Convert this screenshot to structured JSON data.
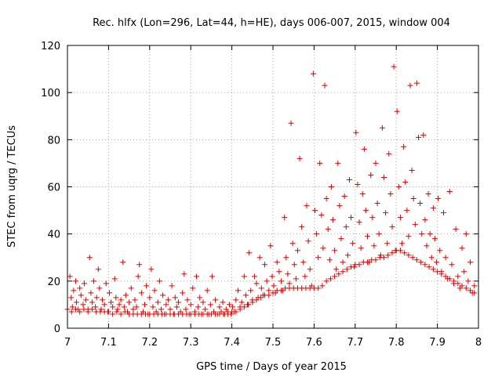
{
  "chart_data": {
    "type": "scatter",
    "title": "Rec. hlfx (Lon=296, Lat=44, h=HE), days 006-007, 2015, window 004",
    "xlabel": "GPS time / Days of year 2015",
    "ylabel": "STEC from uqrg / TECUs",
    "xlim": [
      7,
      8
    ],
    "ylim": [
      0,
      120
    ],
    "x_ticks": [
      7,
      7.1,
      7.2,
      7.3,
      7.4,
      7.5,
      7.6,
      7.7,
      7.8,
      7.9,
      8
    ],
    "x_tick_labels": [
      "7",
      "7.1",
      "7.2",
      "7.3",
      "7.4",
      "7.5",
      "7.6",
      "7.7",
      "7.8",
      "7.9",
      "8"
    ],
    "y_ticks": [
      0,
      20,
      40,
      60,
      80,
      100,
      120
    ],
    "y_tick_labels": [
      "0",
      "20",
      "40",
      "60",
      "80",
      "100",
      "120"
    ],
    "grid": true,
    "marker": "plus",
    "series_color": "#dd0000",
    "points": [
      [
        7.006,
        22
      ],
      [
        7.009,
        13
      ],
      [
        7.012,
        9
      ],
      [
        7.015,
        16
      ],
      [
        7.02,
        20
      ],
      [
        7.022,
        11
      ],
      [
        7.026,
        8
      ],
      [
        7.03,
        17
      ],
      [
        7.033,
        14
      ],
      [
        7.038,
        10
      ],
      [
        7.041,
        19
      ],
      [
        7.045,
        12
      ],
      [
        7.05,
        8
      ],
      [
        7.054,
        30
      ],
      [
        7.057,
        15
      ],
      [
        7.06,
        11
      ],
      [
        7.064,
        20
      ],
      [
        7.068,
        9
      ],
      [
        7.071,
        13
      ],
      [
        7.075,
        25
      ],
      [
        7.078,
        17
      ],
      [
        7.082,
        8
      ],
      [
        7.085,
        12
      ],
      [
        7.09,
        10
      ],
      [
        7.094,
        19
      ],
      [
        7.098,
        7
      ],
      [
        7.102,
        15
      ],
      [
        7.106,
        11
      ],
      [
        7.11,
        9
      ],
      [
        7.115,
        21
      ],
      [
        7.118,
        13
      ],
      [
        7.122,
        8
      ],
      [
        7.126,
        10
      ],
      [
        7.13,
        12
      ],
      [
        7.135,
        28
      ],
      [
        7.138,
        9
      ],
      [
        7.142,
        14
      ],
      [
        7.146,
        7
      ],
      [
        7.15,
        11
      ],
      [
        7.155,
        17
      ],
      [
        7.16,
        8
      ],
      [
        7.164,
        12
      ],
      [
        7.168,
        9
      ],
      [
        7.172,
        22
      ],
      [
        7.175,
        27
      ],
      [
        7.18,
        15
      ],
      [
        7.184,
        7
      ],
      [
        7.188,
        10
      ],
      [
        7.192,
        18
      ],
      [
        7.196,
        6
      ],
      [
        7.2,
        13
      ],
      [
        7.204,
        25
      ],
      [
        7.208,
        9
      ],
      [
        7.212,
        16
      ],
      [
        7.216,
        7
      ],
      [
        7.22,
        11
      ],
      [
        7.224,
        20
      ],
      [
        7.228,
        8
      ],
      [
        7.232,
        14
      ],
      [
        7.236,
        6
      ],
      [
        7.24,
        10
      ],
      [
        7.245,
        12
      ],
      [
        7.25,
        8
      ],
      [
        7.254,
        18
      ],
      [
        7.258,
        6
      ],
      [
        7.262,
        13
      ],
      [
        7.266,
        9
      ],
      [
        7.27,
        11
      ],
      [
        7.275,
        7
      ],
      [
        7.28,
        15
      ],
      [
        7.284,
        23
      ],
      [
        7.288,
        8
      ],
      [
        7.292,
        12
      ],
      [
        7.296,
        6
      ],
      [
        7.3,
        10
      ],
      [
        7.305,
        17
      ],
      [
        7.31,
        7
      ],
      [
        7.314,
        22
      ],
      [
        7.318,
        9
      ],
      [
        7.322,
        13
      ],
      [
        7.326,
        6
      ],
      [
        7.33,
        11
      ],
      [
        7.335,
        8
      ],
      [
        7.34,
        16
      ],
      [
        7.344,
        6
      ],
      [
        7.348,
        10
      ],
      [
        7.352,
        22
      ],
      [
        7.356,
        7
      ],
      [
        7.36,
        12
      ],
      [
        7.365,
        6
      ],
      [
        7.37,
        9
      ],
      [
        7.374,
        7
      ],
      [
        7.378,
        11
      ],
      [
        7.382,
        6
      ],
      [
        7.386,
        8
      ],
      [
        7.39,
        7
      ],
      [
        7.394,
        10
      ],
      [
        7.398,
        6
      ],
      [
        7.402,
        9
      ],
      [
        7.406,
        7
      ],
      [
        7.41,
        12
      ],
      [
        7.415,
        16
      ],
      [
        7.42,
        9
      ],
      [
        7.424,
        11
      ],
      [
        7.43,
        22
      ],
      [
        7.434,
        14
      ],
      [
        7.438,
        10
      ],
      [
        7.442,
        32
      ],
      [
        7.446,
        16
      ],
      [
        7.45,
        12
      ],
      [
        7.455,
        22
      ],
      [
        7.46,
        19
      ],
      [
        7.464,
        13
      ],
      [
        7.468,
        30
      ],
      [
        7.472,
        17
      ],
      [
        7.476,
        14
      ],
      [
        7.48,
        27
      ],
      [
        7.485,
        20
      ],
      [
        7.49,
        16
      ],
      [
        7.494,
        35
      ],
      [
        7.498,
        22
      ],
      [
        7.502,
        18
      ],
      [
        7.506,
        15
      ],
      [
        7.51,
        28
      ],
      [
        7.515,
        24
      ],
      [
        7.52,
        20
      ],
      [
        7.524,
        16
      ],
      [
        7.528,
        47
      ],
      [
        7.532,
        30
      ],
      [
        7.536,
        23
      ],
      [
        7.54,
        19
      ],
      [
        7.544,
        87
      ],
      [
        7.548,
        36
      ],
      [
        7.552,
        27
      ],
      [
        7.556,
        21
      ],
      [
        7.56,
        33
      ],
      [
        7.565,
        72
      ],
      [
        7.57,
        43
      ],
      [
        7.574,
        28
      ],
      [
        7.578,
        22
      ],
      [
        7.582,
        52
      ],
      [
        7.586,
        37
      ],
      [
        7.59,
        25
      ],
      [
        7.594,
        18
      ],
      [
        7.598,
        108
      ],
      [
        7.602,
        50
      ],
      [
        7.606,
        40
      ],
      [
        7.61,
        30
      ],
      [
        7.614,
        70
      ],
      [
        7.618,
        48
      ],
      [
        7.622,
        34
      ],
      [
        7.626,
        103
      ],
      [
        7.63,
        55
      ],
      [
        7.634,
        42
      ],
      [
        7.638,
        29
      ],
      [
        7.642,
        60
      ],
      [
        7.646,
        46
      ],
      [
        7.65,
        33
      ],
      [
        7.654,
        25
      ],
      [
        7.658,
        70
      ],
      [
        7.662,
        52
      ],
      [
        7.666,
        38
      ],
      [
        7.67,
        28
      ],
      [
        7.674,
        56
      ],
      [
        7.678,
        43
      ],
      [
        7.682,
        31
      ],
      [
        7.686,
        63
      ],
      [
        7.69,
        47
      ],
      [
        7.694,
        36
      ],
      [
        7.698,
        26
      ],
      [
        7.702,
        83
      ],
      [
        7.706,
        61
      ],
      [
        7.71,
        45
      ],
      [
        7.714,
        34
      ],
      [
        7.718,
        57
      ],
      [
        7.722,
        76
      ],
      [
        7.726,
        50
      ],
      [
        7.73,
        39
      ],
      [
        7.734,
        28
      ],
      [
        7.738,
        65
      ],
      [
        7.742,
        47
      ],
      [
        7.746,
        35
      ],
      [
        7.75,
        70
      ],
      [
        7.754,
        53
      ],
      [
        7.758,
        40
      ],
      [
        7.762,
        31
      ],
      [
        7.766,
        85
      ],
      [
        7.77,
        64
      ],
      [
        7.774,
        49
      ],
      [
        7.778,
        36
      ],
      [
        7.782,
        74
      ],
      [
        7.786,
        57
      ],
      [
        7.79,
        43
      ],
      [
        7.794,
        111
      ],
      [
        7.798,
        33
      ],
      [
        7.802,
        92
      ],
      [
        7.806,
        60
      ],
      [
        7.81,
        47
      ],
      [
        7.814,
        36
      ],
      [
        7.818,
        77
      ],
      [
        7.822,
        62
      ],
      [
        7.826,
        50
      ],
      [
        7.83,
        39
      ],
      [
        7.834,
        103
      ],
      [
        7.838,
        67
      ],
      [
        7.842,
        55
      ],
      [
        7.846,
        44
      ],
      [
        7.85,
        104
      ],
      [
        7.854,
        81
      ],
      [
        7.858,
        53
      ],
      [
        7.862,
        40
      ],
      [
        7.866,
        82
      ],
      [
        7.87,
        46
      ],
      [
        7.874,
        35
      ],
      [
        7.878,
        57
      ],
      [
        7.882,
        40
      ],
      [
        7.886,
        30
      ],
      [
        7.89,
        51
      ],
      [
        7.894,
        38
      ],
      [
        7.898,
        28
      ],
      [
        7.902,
        55
      ],
      [
        7.906,
        33
      ],
      [
        7.91,
        24
      ],
      [
        7.915,
        49
      ],
      [
        7.92,
        30
      ],
      [
        7.925,
        21
      ],
      [
        7.93,
        58
      ],
      [
        7.935,
        27
      ],
      [
        7.94,
        19
      ],
      [
        7.945,
        42
      ],
      [
        7.95,
        22
      ],
      [
        7.955,
        17
      ],
      [
        7.96,
        34
      ],
      [
        7.965,
        24
      ],
      [
        7.97,
        40
      ],
      [
        7.975,
        20
      ],
      [
        7.98,
        28
      ],
      [
        7.985,
        15
      ],
      [
        7.99,
        18
      ]
    ],
    "band_points": [
      [
        7.0,
        8
      ],
      [
        7.01,
        7
      ],
      [
        7.02,
        8
      ],
      [
        7.03,
        7
      ],
      [
        7.04,
        8
      ],
      [
        7.05,
        7
      ],
      [
        7.06,
        8
      ],
      [
        7.07,
        7
      ],
      [
        7.08,
        7
      ],
      [
        7.09,
        7
      ],
      [
        7.1,
        7
      ],
      [
        7.11,
        6
      ],
      [
        7.12,
        7
      ],
      [
        7.13,
        6
      ],
      [
        7.14,
        7
      ],
      [
        7.15,
        6
      ],
      [
        7.16,
        6
      ],
      [
        7.17,
        6
      ],
      [
        7.18,
        6
      ],
      [
        7.19,
        6
      ],
      [
        7.2,
        6
      ],
      [
        7.21,
        6
      ],
      [
        7.22,
        6
      ],
      [
        7.23,
        6
      ],
      [
        7.24,
        6
      ],
      [
        7.25,
        6
      ],
      [
        7.26,
        6
      ],
      [
        7.27,
        6
      ],
      [
        7.28,
        6
      ],
      [
        7.29,
        6
      ],
      [
        7.3,
        6
      ],
      [
        7.31,
        6
      ],
      [
        7.32,
        6
      ],
      [
        7.33,
        6
      ],
      [
        7.34,
        6
      ],
      [
        7.35,
        6
      ],
      [
        7.36,
        6
      ],
      [
        7.37,
        6
      ],
      [
        7.38,
        6
      ],
      [
        7.39,
        6
      ],
      [
        7.4,
        7
      ],
      [
        7.41,
        7
      ],
      [
        7.42,
        8
      ],
      [
        7.43,
        9
      ],
      [
        7.44,
        10
      ],
      [
        7.45,
        11
      ],
      [
        7.46,
        12
      ],
      [
        7.47,
        13
      ],
      [
        7.48,
        14
      ],
      [
        7.49,
        14
      ],
      [
        7.5,
        15
      ],
      [
        7.51,
        16
      ],
      [
        7.52,
        16
      ],
      [
        7.53,
        17
      ],
      [
        7.54,
        17
      ],
      [
        7.55,
        17
      ],
      [
        7.56,
        17
      ],
      [
        7.57,
        17
      ],
      [
        7.58,
        17
      ],
      [
        7.59,
        17
      ],
      [
        7.6,
        17
      ],
      [
        7.61,
        17
      ],
      [
        7.62,
        18
      ],
      [
        7.63,
        20
      ],
      [
        7.64,
        21
      ],
      [
        7.65,
        22
      ],
      [
        7.66,
        23
      ],
      [
        7.67,
        24
      ],
      [
        7.68,
        25
      ],
      [
        7.69,
        26
      ],
      [
        7.7,
        27
      ],
      [
        7.71,
        27
      ],
      [
        7.72,
        28
      ],
      [
        7.73,
        28
      ],
      [
        7.74,
        29
      ],
      [
        7.75,
        29
      ],
      [
        7.76,
        30
      ],
      [
        7.77,
        30
      ],
      [
        7.78,
        31
      ],
      [
        7.79,
        32
      ],
      [
        7.8,
        33
      ],
      [
        7.81,
        33
      ],
      [
        7.82,
        32
      ],
      [
        7.83,
        31
      ],
      [
        7.84,
        30
      ],
      [
        7.85,
        29
      ],
      [
        7.86,
        28
      ],
      [
        7.87,
        27
      ],
      [
        7.88,
        26
      ],
      [
        7.89,
        25
      ],
      [
        7.9,
        24
      ],
      [
        7.91,
        23
      ],
      [
        7.92,
        22
      ],
      [
        7.93,
        21
      ],
      [
        7.94,
        20
      ],
      [
        7.95,
        19
      ],
      [
        7.96,
        18
      ],
      [
        7.97,
        17
      ],
      [
        7.98,
        16
      ],
      [
        7.99,
        15
      ]
    ]
  }
}
